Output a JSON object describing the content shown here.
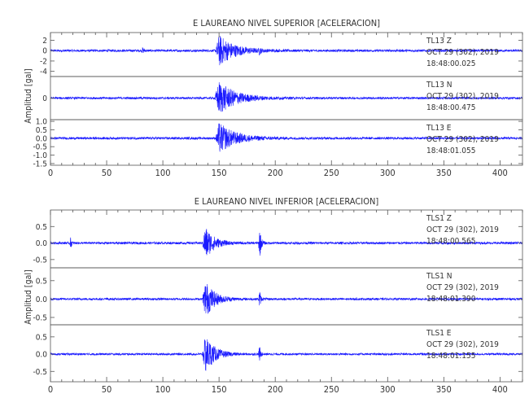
{
  "chart_data": [
    {
      "type": "line",
      "title": "E LAUREANO NIVEL SUPERIOR [ACELERACION]",
      "ylabel": "Amplitud [gal]",
      "xlim": [
        0,
        420
      ],
      "xticks": [
        0,
        50,
        100,
        150,
        200,
        250,
        300,
        350,
        400
      ],
      "line_color": "#1a1aff",
      "panels": [
        {
          "station": "TL13",
          "component": "Z",
          "date": "OCT 29 (302), 2019",
          "time": "18:48:00.025",
          "ylim": [
            -5,
            3.5
          ],
          "yticks": [
            "2",
            "0",
            "-2",
            "-4"
          ],
          "events": [
            {
              "t": 150,
              "amp": 3.0,
              "dur": 40,
              "rise": 3
            },
            {
              "t": 82,
              "amp": 0.5,
              "dur": 4,
              "rise": 1
            },
            {
              "t": 186,
              "amp": 0.6,
              "dur": 3,
              "rise": 1
            }
          ],
          "noise": 0.22
        },
        {
          "station": "TL13",
          "component": "N",
          "date": "OCT 29 (302), 2019",
          "time": "18:48:00.475",
          "ylim": [
            -1,
            1
          ],
          "yticks": [
            "0"
          ],
          "events": [
            {
              "t": 150,
              "amp": 0.75,
              "dur": 45,
              "rise": 4
            }
          ],
          "noise": 0.05
        },
        {
          "station": "TL13",
          "component": "E",
          "date": "OCT 29 (302), 2019",
          "time": "18:48:01.055",
          "ylim": [
            -1.6,
            1.1
          ],
          "yticks": [
            "1.0",
            "0.5",
            "0.0",
            "-0.5",
            "-1.0",
            "-1.5"
          ],
          "events": [
            {
              "t": 150,
              "amp": 0.9,
              "dur": 42,
              "rise": 3
            }
          ],
          "noise": 0.07
        }
      ]
    },
    {
      "type": "line",
      "title": "E LAUREANO NIVEL INFERIOR [ACELERACION]",
      "ylabel": "Amplitud [gal]",
      "xlim": [
        0,
        420
      ],
      "xticks": [
        0,
        50,
        100,
        150,
        200,
        250,
        300,
        350,
        400
      ],
      "line_color": "#1a1aff",
      "panels": [
        {
          "station": "TLS1",
          "component": "Z",
          "date": "OCT 29 (302), 2019",
          "time": "18:48:00.565",
          "ylim": [
            -0.75,
            1.0
          ],
          "yticks": [
            "0.5",
            "0.0",
            "-0.5"
          ],
          "events": [
            {
              "t": 138,
              "amp": 0.5,
              "dur": 22,
              "rise": 3
            },
            {
              "t": 186,
              "amp": 0.5,
              "dur": 4,
              "rise": 1
            },
            {
              "t": 18,
              "amp": 0.15,
              "dur": 3,
              "rise": 1
            }
          ],
          "noise": 0.035
        },
        {
          "station": "TLS1",
          "component": "N",
          "date": "OCT 29 (302), 2019",
          "time": "18:48:01.390",
          "ylim": [
            -0.7,
            0.85
          ],
          "yticks": [
            "0.5",
            "0.0",
            "-0.5"
          ],
          "events": [
            {
              "t": 138,
              "amp": 0.5,
              "dur": 24,
              "rise": 3
            },
            {
              "t": 186,
              "amp": 0.25,
              "dur": 3,
              "rise": 1
            }
          ],
          "noise": 0.03
        },
        {
          "station": "TLS1",
          "component": "E",
          "date": "OCT 29 (302), 2019",
          "time": "18:48:01.155",
          "ylim": [
            -0.8,
            0.85
          ],
          "yticks": [
            "0.5",
            "0.0",
            "-0.5"
          ],
          "events": [
            {
              "t": 138,
              "amp": 0.55,
              "dur": 24,
              "rise": 3
            },
            {
              "t": 186,
              "amp": 0.25,
              "dur": 3,
              "rise": 1
            }
          ],
          "noise": 0.03
        }
      ]
    }
  ]
}
